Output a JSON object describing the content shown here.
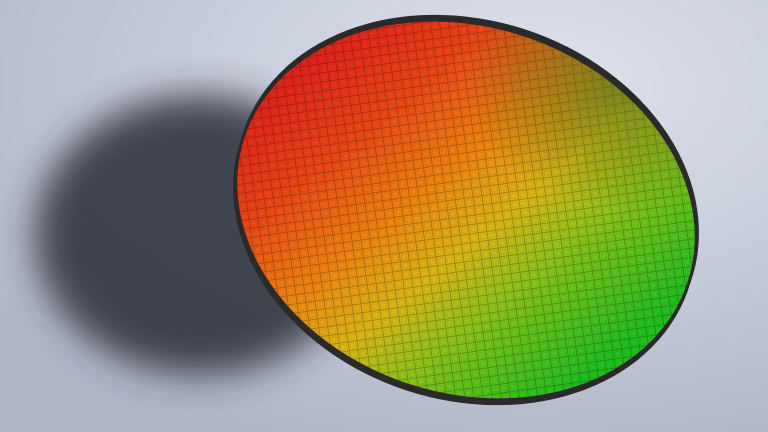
{
  "scene": {
    "subject": "silicon-wafer",
    "colors": {
      "background_light": "#dfe3ee",
      "background_dark": "#aeb5c6",
      "shadow": "#2a2d38",
      "wafer_red": "#e8261c",
      "wafer_orange": "#f07a12",
      "wafer_yellow": "#d8c018",
      "wafer_green": "#2bc41e",
      "wafer_edge": "#2a2a2a"
    }
  }
}
